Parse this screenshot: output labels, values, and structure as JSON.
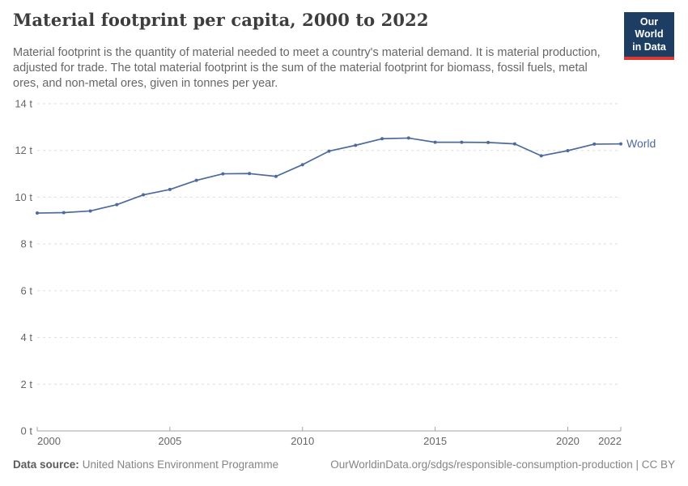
{
  "header": {
    "title": "Material footprint per capita, 2000 to 2022",
    "subtitle": "Material footprint is the quantity of material needed to meet a country's material demand. It is material production, adjusted for trade. The total material footprint is the sum of the material footprint for biomass, fossil fuels, metal ores, and non-metal ores, given in tonnes per year.",
    "logo": {
      "line1": "Our World",
      "line2": "in Data",
      "bg": "#1d3d63",
      "accent": "#d93a34"
    }
  },
  "chart_data": {
    "type": "line",
    "title": "Material footprint per capita, 2000 to 2022",
    "xlabel": "",
    "ylabel": "",
    "unit": "tonnes per year",
    "xlim": [
      2000,
      2022
    ],
    "ylim": [
      0,
      14
    ],
    "grid": "horizontal-dashed",
    "grid_color": "#dddddd",
    "axis_color": "#a3a3a3",
    "legend_position": "end-of-line-label",
    "x_ticks": [
      2000,
      2005,
      2010,
      2015,
      2020,
      2022
    ],
    "y_ticks": [
      {
        "value": 0,
        "label": "0 t"
      },
      {
        "value": 2,
        "label": "2 t"
      },
      {
        "value": 4,
        "label": "4 t"
      },
      {
        "value": 6,
        "label": "6 t"
      },
      {
        "value": 8,
        "label": "8 t"
      },
      {
        "value": 10,
        "label": "10 t"
      },
      {
        "value": 12,
        "label": "12 t"
      },
      {
        "value": 14,
        "label": "14 t"
      }
    ],
    "series": [
      {
        "name": "World",
        "color": "#4c6a9c",
        "x": [
          2000,
          2001,
          2002,
          2003,
          2004,
          2005,
          2006,
          2007,
          2008,
          2009,
          2010,
          2011,
          2012,
          2013,
          2014,
          2015,
          2016,
          2017,
          2018,
          2019,
          2020,
          2021,
          2022
        ],
        "values": [
          9.32,
          9.34,
          9.41,
          9.68,
          10.1,
          10.33,
          10.72,
          11.0,
          11.01,
          10.89,
          11.39,
          11.97,
          12.22,
          12.5,
          12.53,
          12.35,
          12.35,
          12.34,
          12.28,
          11.77,
          11.99,
          12.27,
          12.28
        ]
      }
    ]
  },
  "footer": {
    "datasource_label": "Data source:",
    "datasource_value": "United Nations Environment Programme",
    "link_text": "OurWorldinData.org/sdgs/responsible-consumption-production | CC BY"
  }
}
